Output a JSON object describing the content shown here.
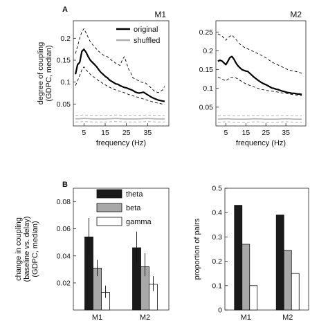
{
  "panel_labels": {
    "A": "A",
    "B": "B"
  },
  "chart_data": [
    {
      "id": "a_m1",
      "type": "line",
      "title": "M1",
      "xlabel": "frequency (Hz)",
      "ylabel_lines": [
        "degree of coupling",
        "(GDPC, median)"
      ],
      "xlim": [
        0,
        45
      ],
      "ylim": [
        0,
        0.24
      ],
      "xticks": [
        5,
        15,
        25,
        35
      ],
      "yticks": [
        0.05,
        0.1,
        0.15,
        0.2
      ],
      "ytick_labels": [
        "0.05",
        "0.1",
        "0.15",
        "0.2"
      ],
      "legend": [
        "original",
        "shuffled"
      ],
      "series": [
        {
          "name": "original",
          "role": "median",
          "color": "#000000",
          "x": [
            1,
            2,
            3,
            4,
            5,
            6,
            7,
            8,
            9,
            10,
            11,
            12,
            13,
            14,
            15,
            16,
            17,
            18,
            19,
            20,
            21,
            22,
            23,
            24,
            25,
            26,
            27,
            28,
            29,
            30,
            31,
            32,
            33,
            34,
            35,
            36,
            37,
            38,
            39,
            40,
            41,
            42,
            43
          ],
          "y": [
            0.118,
            0.14,
            0.145,
            0.17,
            0.175,
            0.168,
            0.158,
            0.15,
            0.145,
            0.14,
            0.135,
            0.128,
            0.122,
            0.118,
            0.113,
            0.11,
            0.105,
            0.102,
            0.099,
            0.096,
            0.095,
            0.092,
            0.09,
            0.088,
            0.087,
            0.085,
            0.083,
            0.081,
            0.078,
            0.076,
            0.075,
            0.076,
            0.077,
            0.074,
            0.071,
            0.068,
            0.065,
            0.063,
            0.061,
            0.059,
            0.058,
            0.057,
            0.056
          ]
        },
        {
          "name": "original",
          "role": "upper-bound",
          "color": "#000000",
          "x": [
            1,
            3,
            4,
            5,
            6,
            8,
            10,
            12,
            14,
            16,
            18,
            20,
            22,
            23,
            24,
            25,
            26,
            27,
            28,
            30,
            32,
            34,
            36,
            38,
            40,
            42,
            43
          ],
          "y": [
            0.165,
            0.2,
            0.215,
            0.222,
            0.212,
            0.192,
            0.18,
            0.17,
            0.162,
            0.158,
            0.15,
            0.143,
            0.138,
            0.15,
            0.158,
            0.145,
            0.13,
            0.122,
            0.11,
            0.105,
            0.1,
            0.098,
            0.09,
            0.08,
            0.076,
            0.082,
            0.09
          ]
        },
        {
          "name": "original",
          "role": "lower-bound",
          "color": "#000000",
          "x": [
            1,
            3,
            4,
            5,
            6,
            8,
            10,
            12,
            14,
            16,
            18,
            20,
            22,
            24,
            26,
            28,
            30,
            32,
            34,
            36,
            38,
            40,
            42,
            43
          ],
          "y": [
            0.092,
            0.115,
            0.128,
            0.135,
            0.128,
            0.118,
            0.11,
            0.103,
            0.097,
            0.091,
            0.086,
            0.082,
            0.079,
            0.076,
            0.072,
            0.069,
            0.066,
            0.063,
            0.06,
            0.057,
            0.054,
            0.052,
            0.05,
            0.049
          ]
        },
        {
          "name": "shuffled",
          "role": "median",
          "color": "#b0b0b0",
          "x": [
            1,
            5,
            10,
            15,
            20,
            25,
            30,
            35,
            40,
            43
          ],
          "y": [
            0.016,
            0.017,
            0.016,
            0.016,
            0.017,
            0.016,
            0.016,
            0.017,
            0.016,
            0.016
          ]
        },
        {
          "name": "shuffled",
          "role": "upper-bound",
          "color": "#b0b0b0",
          "x": [
            1,
            5,
            10,
            15,
            20,
            25,
            30,
            35,
            40,
            43
          ],
          "y": [
            0.024,
            0.025,
            0.024,
            0.024,
            0.025,
            0.024,
            0.024,
            0.025,
            0.024,
            0.024
          ]
        },
        {
          "name": "shuffled",
          "role": "lower-bound",
          "color": "#b0b0b0",
          "x": [
            1,
            5,
            10,
            15,
            20,
            25,
            30,
            35,
            40,
            43
          ],
          "y": [
            0.009,
            0.01,
            0.009,
            0.009,
            0.01,
            0.009,
            0.009,
            0.01,
            0.009,
            0.009
          ]
        }
      ]
    },
    {
      "id": "a_m2",
      "type": "line",
      "title": "M2",
      "xlabel": "frequency (Hz)",
      "xlim": [
        0,
        45
      ],
      "ylim": [
        0,
        0.28
      ],
      "xticks": [
        5,
        15,
        25,
        35
      ],
      "yticks": [
        0.05,
        0.1,
        0.15,
        0.2,
        0.25
      ],
      "ytick_labels": [
        "0.05",
        "0.1",
        "0.15",
        "0.2",
        "0.25"
      ],
      "series": [
        {
          "name": "original",
          "role": "median",
          "color": "#000000",
          "x": [
            1,
            2,
            3,
            4,
            5,
            6,
            7,
            8,
            9,
            10,
            11,
            12,
            13,
            14,
            15,
            16,
            17,
            18,
            19,
            20,
            21,
            22,
            23,
            24,
            25,
            26,
            27,
            28,
            29,
            30,
            31,
            32,
            33,
            34,
            35,
            36,
            37,
            38,
            39,
            40,
            41,
            42,
            43
          ],
          "y": [
            0.172,
            0.175,
            0.173,
            0.168,
            0.163,
            0.172,
            0.182,
            0.185,
            0.178,
            0.168,
            0.16,
            0.155,
            0.15,
            0.148,
            0.146,
            0.145,
            0.14,
            0.135,
            0.13,
            0.126,
            0.122,
            0.118,
            0.115,
            0.112,
            0.11,
            0.107,
            0.104,
            0.101,
            0.1,
            0.098,
            0.097,
            0.095,
            0.093,
            0.092,
            0.09,
            0.089,
            0.088,
            0.087,
            0.087,
            0.086,
            0.085,
            0.085,
            0.084
          ]
        },
        {
          "name": "original",
          "role": "upper-bound",
          "color": "#000000",
          "x": [
            1,
            3,
            5,
            6,
            8,
            10,
            12,
            14,
            16,
            18,
            20,
            22,
            24,
            26,
            28,
            30,
            32,
            34,
            36,
            38,
            40,
            42,
            43
          ],
          "y": [
            0.245,
            0.24,
            0.228,
            0.235,
            0.242,
            0.23,
            0.218,
            0.21,
            0.205,
            0.2,
            0.195,
            0.19,
            0.185,
            0.178,
            0.17,
            0.165,
            0.16,
            0.155,
            0.15,
            0.147,
            0.145,
            0.142,
            0.14
          ]
        },
        {
          "name": "original",
          "role": "lower-bound",
          "color": "#000000",
          "x": [
            1,
            3,
            5,
            7,
            9,
            11,
            13,
            15,
            17,
            19,
            21,
            23,
            25,
            27,
            29,
            31,
            33,
            35,
            37,
            39,
            41,
            43
          ],
          "y": [
            0.13,
            0.125,
            0.12,
            0.128,
            0.13,
            0.125,
            0.118,
            0.112,
            0.108,
            0.104,
            0.1,
            0.097,
            0.095,
            0.093,
            0.092,
            0.09,
            0.088,
            0.087,
            0.085,
            0.083,
            0.082,
            0.08
          ]
        },
        {
          "name": "shuffled",
          "role": "median",
          "color": "#b0b0b0",
          "x": [
            1,
            5,
            10,
            15,
            20,
            25,
            30,
            35,
            40,
            43
          ],
          "y": [
            0.018,
            0.019,
            0.018,
            0.018,
            0.019,
            0.018,
            0.018,
            0.019,
            0.018,
            0.018
          ]
        },
        {
          "name": "shuffled",
          "role": "upper-bound",
          "color": "#b0b0b0",
          "x": [
            1,
            5,
            10,
            15,
            20,
            25,
            30,
            35,
            40,
            43
          ],
          "y": [
            0.027,
            0.028,
            0.027,
            0.027,
            0.028,
            0.027,
            0.027,
            0.028,
            0.027,
            0.027
          ]
        },
        {
          "name": "shuffled",
          "role": "lower-bound",
          "color": "#b0b0b0",
          "x": [
            1,
            5,
            10,
            15,
            20,
            25,
            30,
            35,
            40,
            43
          ],
          "y": [
            0.01,
            0.011,
            0.01,
            0.01,
            0.011,
            0.01,
            0.01,
            0.011,
            0.01,
            0.01
          ]
        }
      ]
    },
    {
      "id": "b_change",
      "type": "bar",
      "categories": [
        "M1",
        "M2"
      ],
      "ylabel_lines": [
        "change  in  coupling",
        "(baseline vs. delay)",
        "(GDPC, median)"
      ],
      "ylim": [
        0,
        0.09
      ],
      "yticks": [
        0.02,
        0.04,
        0.06,
        0.08
      ],
      "ytick_labels": [
        "0.02",
        "0.04",
        "0.06",
        "0.08"
      ],
      "legend": [
        "theta",
        "beta",
        "gamma"
      ],
      "series": [
        {
          "name": "theta",
          "color": "#1a1a1a",
          "values": [
            0.054,
            0.046
          ],
          "err_low": [
            0.041,
            0.034
          ],
          "err_high": [
            0.068,
            0.058
          ]
        },
        {
          "name": "beta",
          "color": "#a8a8a8",
          "values": [
            0.031,
            0.032
          ],
          "err_low": [
            0.025,
            0.025
          ],
          "err_high": [
            0.037,
            0.042
          ]
        },
        {
          "name": "gamma",
          "color": "#ffffff",
          "values": [
            0.013,
            0.019
          ],
          "err_low": [
            0.009,
            0.014
          ],
          "err_high": [
            0.018,
            0.025
          ]
        }
      ]
    },
    {
      "id": "b_pairs",
      "type": "bar",
      "categories": [
        "M1",
        "M2"
      ],
      "ylabel": "proportion of pairs",
      "ylim": [
        0,
        0.5
      ],
      "yticks": [
        0,
        0.1,
        0.2,
        0.3,
        0.4,
        0.5
      ],
      "ytick_labels": [
        "0",
        "0.1",
        "0.2",
        "0.3",
        "0.4",
        "0.5"
      ],
      "series": [
        {
          "name": "theta",
          "color": "#1a1a1a",
          "values": [
            0.43,
            0.39
          ]
        },
        {
          "name": "beta",
          "color": "#a8a8a8",
          "values": [
            0.27,
            0.245
          ]
        },
        {
          "name": "gamma",
          "color": "#ffffff",
          "values": [
            0.1,
            0.15
          ]
        }
      ]
    }
  ]
}
